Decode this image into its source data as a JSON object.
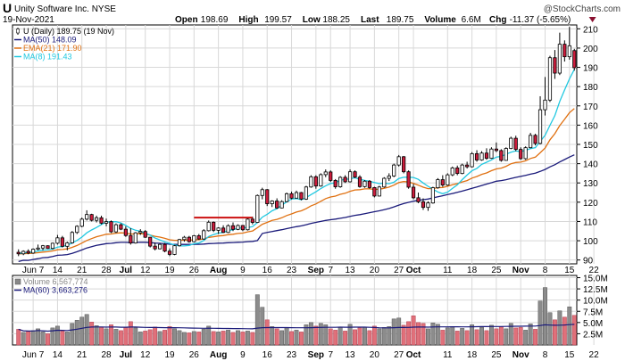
{
  "header": {
    "ticker": "U",
    "company": "Unity Software Inc.",
    "exchange": "NYSE",
    "date": "19-Nov-2021",
    "brand": "@StockCharts.com",
    "stats": [
      {
        "label": "Open",
        "value": "198.69"
      },
      {
        "label": "High",
        "value": "199.57"
      },
      {
        "label": "Low",
        "value": "188.25"
      },
      {
        "label": "Last",
        "value": "189.75"
      },
      {
        "label": "Volume",
        "value": "6.6M"
      },
      {
        "label": "Chg",
        "value": "-11.37 (-5.65%)"
      }
    ]
  },
  "price_legend": [
    {
      "text": "U (Daily) 189.75 (19 Nov)",
      "color": "#000000",
      "swatch": "candle"
    },
    {
      "text": "MA(50) 148.09",
      "color": "#1a1a7a",
      "swatch": "line"
    },
    {
      "text": "EMA(21) 171.90",
      "color": "#e07010",
      "swatch": "line"
    },
    {
      "text": "MA(8) 191.43",
      "color": "#20c8e0",
      "swatch": "line"
    }
  ],
  "volume_legend": [
    {
      "text": "Volume 6,567,774",
      "color": "#888888",
      "swatch": "box"
    },
    {
      "text": "MA(60) 3,663,276",
      "color": "#1a1a7a",
      "swatch": "line"
    }
  ],
  "colors": {
    "up": "#ffffff",
    "down": "#cc1c3c",
    "vol_up": "#8c8c8c",
    "vol_down": "#e0707a",
    "ma50": "#1a1a7a",
    "ema21": "#e07010",
    "ma8": "#20c8e0",
    "grid": "#d8d8d8",
    "resistance": "#cc1010"
  },
  "chart_data": {
    "type": "candlestick",
    "y_price_range": [
      88,
      212
    ],
    "y_price_ticks": [
      90,
      100,
      110,
      120,
      130,
      140,
      150,
      160,
      170,
      180,
      190,
      200,
      210
    ],
    "y_volume_range": [
      0,
      15500000
    ],
    "y_volume_ticks": [
      "2.5M",
      "5.0M",
      "7.5M",
      "10.0M",
      "12.5M",
      "15.0M"
    ],
    "y_volume_tick_values": [
      2500000,
      5000000,
      7500000,
      10000000,
      12500000,
      15000000
    ],
    "x_labels": [
      {
        "i": 3,
        "text": "Jun 7",
        "bold": false
      },
      {
        "i": 8,
        "text": "14",
        "bold": false
      },
      {
        "i": 13,
        "text": "21",
        "bold": false
      },
      {
        "i": 18,
        "text": "28",
        "bold": false
      },
      {
        "i": 22,
        "text": "Jul",
        "bold": true
      },
      {
        "i": 26,
        "text": "12",
        "bold": false
      },
      {
        "i": 31,
        "text": "19",
        "bold": false
      },
      {
        "i": 36,
        "text": "26",
        "bold": false
      },
      {
        "i": 41,
        "text": "Aug",
        "bold": true
      },
      {
        "i": 46,
        "text": "9",
        "bold": false
      },
      {
        "i": 51,
        "text": "16",
        "bold": false
      },
      {
        "i": 56,
        "text": "23",
        "bold": false
      },
      {
        "i": 61,
        "text": "Sep",
        "bold": true
      },
      {
        "i": 64,
        "text": "7",
        "bold": false
      },
      {
        "i": 68,
        "text": "13",
        "bold": false
      },
      {
        "i": 73,
        "text": "20",
        "bold": false
      },
      {
        "i": 78,
        "text": "27",
        "bold": false
      },
      {
        "i": 81,
        "text": "Oct",
        "bold": true
      },
      {
        "i": 88,
        "text": "11",
        "bold": false
      },
      {
        "i": 93,
        "text": "18",
        "bold": false
      },
      {
        "i": 98,
        "text": "25",
        "bold": false
      },
      {
        "i": 103,
        "text": "Nov",
        "bold": true
      },
      {
        "i": 108,
        "text": "8",
        "bold": false
      },
      {
        "i": 113,
        "text": "15",
        "bold": false
      },
      {
        "i": 118,
        "text": "22",
        "bold": false
      }
    ],
    "resistance_line": {
      "value": 112,
      "from": 36,
      "to": 48
    },
    "ohlc": [
      [
        94.0,
        95.5,
        92.0,
        93.2
      ],
      [
        93.2,
        95.0,
        92.5,
        94.5
      ],
      [
        94.5,
        95.5,
        93.0,
        93.6
      ],
      [
        93.6,
        96.0,
        93.2,
        95.6
      ],
      [
        95.6,
        98.0,
        95.0,
        96.2
      ],
      [
        96.2,
        97.8,
        95.0,
        97.4
      ],
      [
        97.4,
        97.6,
        95.8,
        96.0
      ],
      [
        96.0,
        99.0,
        95.5,
        98.7
      ],
      [
        98.7,
        103.0,
        98.0,
        101.5
      ],
      [
        101.5,
        102.5,
        96.5,
        97.1
      ],
      [
        97.1,
        99.5,
        95.0,
        98.9
      ],
      [
        98.9,
        105.0,
        98.5,
        104.3
      ],
      [
        104.3,
        108.0,
        103.5,
        107.5
      ],
      [
        107.5,
        112.0,
        107.0,
        111.2
      ],
      [
        111.2,
        115.8,
        110.5,
        113.6
      ],
      [
        113.6,
        114.0,
        110.0,
        110.6
      ],
      [
        110.6,
        113.0,
        109.5,
        111.9
      ],
      [
        111.9,
        113.0,
        108.5,
        109.1
      ],
      [
        109.1,
        111.5,
        107.5,
        109.9
      ],
      [
        109.9,
        110.5,
        104.0,
        104.6
      ],
      [
        104.6,
        109.0,
        104.0,
        108.3
      ],
      [
        108.3,
        109.0,
        105.5,
        106.0
      ],
      [
        106.0,
        107.5,
        102.0,
        102.7
      ],
      [
        102.7,
        106.5,
        98.0,
        98.8
      ],
      [
        98.8,
        104.5,
        98.5,
        104.1
      ],
      [
        104.1,
        106.0,
        103.0,
        104.8
      ],
      [
        104.8,
        105.5,
        101.5,
        101.8
      ],
      [
        101.8,
        102.0,
        96.5,
        97.2
      ],
      [
        97.2,
        99.0,
        95.0,
        95.8
      ],
      [
        95.8,
        98.5,
        95.5,
        98.1
      ],
      [
        98.1,
        98.8,
        94.0,
        94.6
      ],
      [
        94.6,
        96.0,
        92.0,
        92.9
      ],
      [
        92.9,
        97.8,
        92.5,
        97.4
      ],
      [
        97.4,
        101.0,
        97.0,
        100.6
      ],
      [
        100.6,
        102.5,
        99.5,
        101.8
      ],
      [
        101.8,
        102.5,
        99.0,
        99.5
      ],
      [
        99.5,
        103.0,
        99.2,
        102.6
      ],
      [
        102.6,
        103.5,
        100.5,
        100.9
      ],
      [
        100.9,
        106.0,
        100.5,
        105.2
      ],
      [
        105.2,
        110.5,
        104.8,
        109.6
      ],
      [
        109.6,
        110.0,
        104.5,
        105.4
      ],
      [
        105.4,
        107.0,
        103.5,
        106.6
      ],
      [
        106.6,
        108.0,
        104.0,
        104.3
      ],
      [
        104.3,
        108.5,
        104.0,
        107.8
      ],
      [
        107.8,
        109.5,
        105.0,
        105.9
      ],
      [
        105.9,
        108.5,
        105.5,
        107.9
      ],
      [
        107.9,
        108.2,
        105.0,
        105.7
      ],
      [
        105.7,
        112.0,
        105.3,
        111.2
      ],
      [
        111.2,
        112.5,
        108.5,
        109.5
      ],
      [
        109.5,
        124.0,
        109.2,
        123.5
      ],
      [
        123.5,
        127.5,
        121.5,
        126.5
      ],
      [
        126.5,
        126.8,
        118.0,
        119.2
      ],
      [
        119.2,
        121.0,
        117.5,
        120.6
      ],
      [
        120.6,
        122.0,
        116.5,
        117.0
      ],
      [
        117.0,
        121.0,
        116.8,
        120.3
      ],
      [
        120.3,
        125.0,
        120.0,
        124.4
      ],
      [
        124.4,
        125.5,
        121.5,
        122.1
      ],
      [
        122.1,
        126.0,
        122.0,
        125.0
      ],
      [
        125.0,
        125.3,
        121.0,
        121.6
      ],
      [
        121.6,
        128.5,
        121.2,
        127.9
      ],
      [
        127.9,
        134.0,
        127.5,
        133.2
      ],
      [
        133.2,
        134.0,
        127.0,
        128.4
      ],
      [
        128.4,
        135.0,
        128.0,
        134.3
      ],
      [
        134.3,
        137.0,
        133.0,
        135.7
      ],
      [
        135.7,
        136.5,
        130.5,
        131.3
      ],
      [
        131.3,
        132.0,
        127.0,
        128.0
      ],
      [
        128.0,
        133.5,
        127.5,
        132.9
      ],
      [
        132.9,
        134.0,
        130.0,
        130.6
      ],
      [
        130.6,
        137.0,
        130.2,
        135.8
      ],
      [
        135.8,
        136.5,
        132.5,
        133.0
      ],
      [
        133.0,
        134.0,
        127.5,
        128.1
      ],
      [
        128.1,
        131.5,
        127.5,
        130.9
      ],
      [
        130.9,
        131.5,
        127.0,
        127.6
      ],
      [
        127.6,
        128.0,
        122.5,
        123.2
      ],
      [
        123.2,
        128.5,
        123.0,
        127.9
      ],
      [
        127.9,
        133.0,
        127.5,
        132.4
      ],
      [
        132.4,
        135.0,
        131.0,
        133.6
      ],
      [
        133.6,
        140.0,
        133.0,
        139.3
      ],
      [
        139.3,
        144.5,
        138.5,
        143.6
      ],
      [
        143.6,
        144.0,
        135.0,
        135.8
      ],
      [
        135.8,
        136.5,
        127.0,
        127.8
      ],
      [
        127.8,
        129.5,
        121.5,
        122.3
      ],
      [
        122.3,
        125.0,
        119.5,
        120.2
      ],
      [
        120.2,
        122.0,
        116.0,
        117.3
      ],
      [
        117.3,
        120.5,
        115.5,
        119.6
      ],
      [
        119.6,
        128.0,
        119.2,
        127.5
      ],
      [
        127.5,
        132.5,
        127.0,
        131.7
      ],
      [
        131.7,
        134.0,
        128.0,
        128.9
      ],
      [
        128.9,
        135.0,
        128.5,
        134.2
      ],
      [
        134.2,
        138.5,
        133.5,
        137.8
      ],
      [
        137.8,
        139.0,
        134.0,
        134.9
      ],
      [
        134.9,
        140.0,
        134.5,
        139.3
      ],
      [
        139.3,
        141.0,
        137.5,
        138.4
      ],
      [
        138.4,
        146.0,
        138.0,
        145.2
      ],
      [
        145.2,
        147.0,
        141.0,
        141.9
      ],
      [
        141.9,
        146.5,
        141.5,
        145.5
      ],
      [
        145.5,
        148.0,
        142.0,
        142.8
      ],
      [
        142.8,
        148.5,
        142.5,
        147.6
      ],
      [
        147.6,
        151.0,
        146.0,
        146.8
      ],
      [
        146.8,
        147.5,
        141.0,
        141.7
      ],
      [
        141.7,
        148.5,
        141.5,
        147.9
      ],
      [
        147.9,
        154.0,
        147.5,
        153.2
      ],
      [
        153.2,
        154.5,
        146.5,
        147.4
      ],
      [
        147.4,
        148.5,
        142.0,
        142.6
      ],
      [
        142.6,
        149.0,
        142.0,
        148.3
      ],
      [
        148.3,
        156.0,
        148.0,
        154.7
      ],
      [
        154.7,
        155.5,
        149.5,
        150.5
      ],
      [
        150.5,
        175.0,
        150.0,
        168.0
      ],
      [
        168.0,
        185.0,
        165.0,
        173.0
      ],
      [
        173.0,
        196.0,
        172.0,
        195.0
      ],
      [
        195.0,
        199.0,
        184.0,
        187.0
      ],
      [
        187.0,
        208.0,
        186.0,
        202.0
      ],
      [
        202.0,
        204.0,
        193.0,
        195.5
      ],
      [
        195.5,
        211.0,
        194.0,
        201.2
      ],
      [
        198.7,
        199.6,
        188.3,
        189.8
      ]
    ],
    "volume": [
      3.5,
      2.8,
      3.0,
      3.2,
      3.6,
      2.9,
      2.5,
      3.8,
      4.2,
      3.1,
      2.9,
      4.8,
      5.5,
      6.2,
      6.8,
      5.1,
      4.3,
      3.9,
      3.6,
      4.5,
      3.5,
      3.2,
      3.9,
      5.2,
      3.8,
      2.9,
      3.1,
      3.4,
      4.0,
      3.0,
      3.3,
      4.1,
      3.6,
      3.2,
      2.8,
      2.7,
      3.0,
      2.9,
      3.5,
      4.2,
      3.0,
      2.9,
      3.1,
      3.3,
      2.8,
      3.2,
      2.9,
      3.1,
      2.8,
      11.2,
      8.4,
      5.6,
      4.1,
      3.6,
      3.2,
      3.8,
      3.0,
      3.3,
      2.9,
      4.5,
      5.0,
      4.2,
      4.8,
      4.5,
      3.6,
      3.3,
      3.9,
      3.1,
      4.6,
      3.4,
      3.8,
      4.0,
      3.2,
      4.2,
      3.6,
      3.9,
      4.1,
      5.8,
      6.0,
      4.4,
      5.2,
      6.5,
      5.0,
      4.8,
      3.6,
      4.9,
      4.6,
      3.3,
      3.8,
      4.1,
      3.1,
      3.7,
      3.2,
      4.5,
      3.4,
      3.9,
      3.2,
      4.4,
      3.6,
      4.0,
      3.6,
      4.8,
      3.8,
      3.9,
      3.3,
      4.7,
      3.5,
      9.8,
      12.8,
      7.2,
      5.6,
      7.6,
      6.2,
      8.5,
      6.6
    ]
  }
}
